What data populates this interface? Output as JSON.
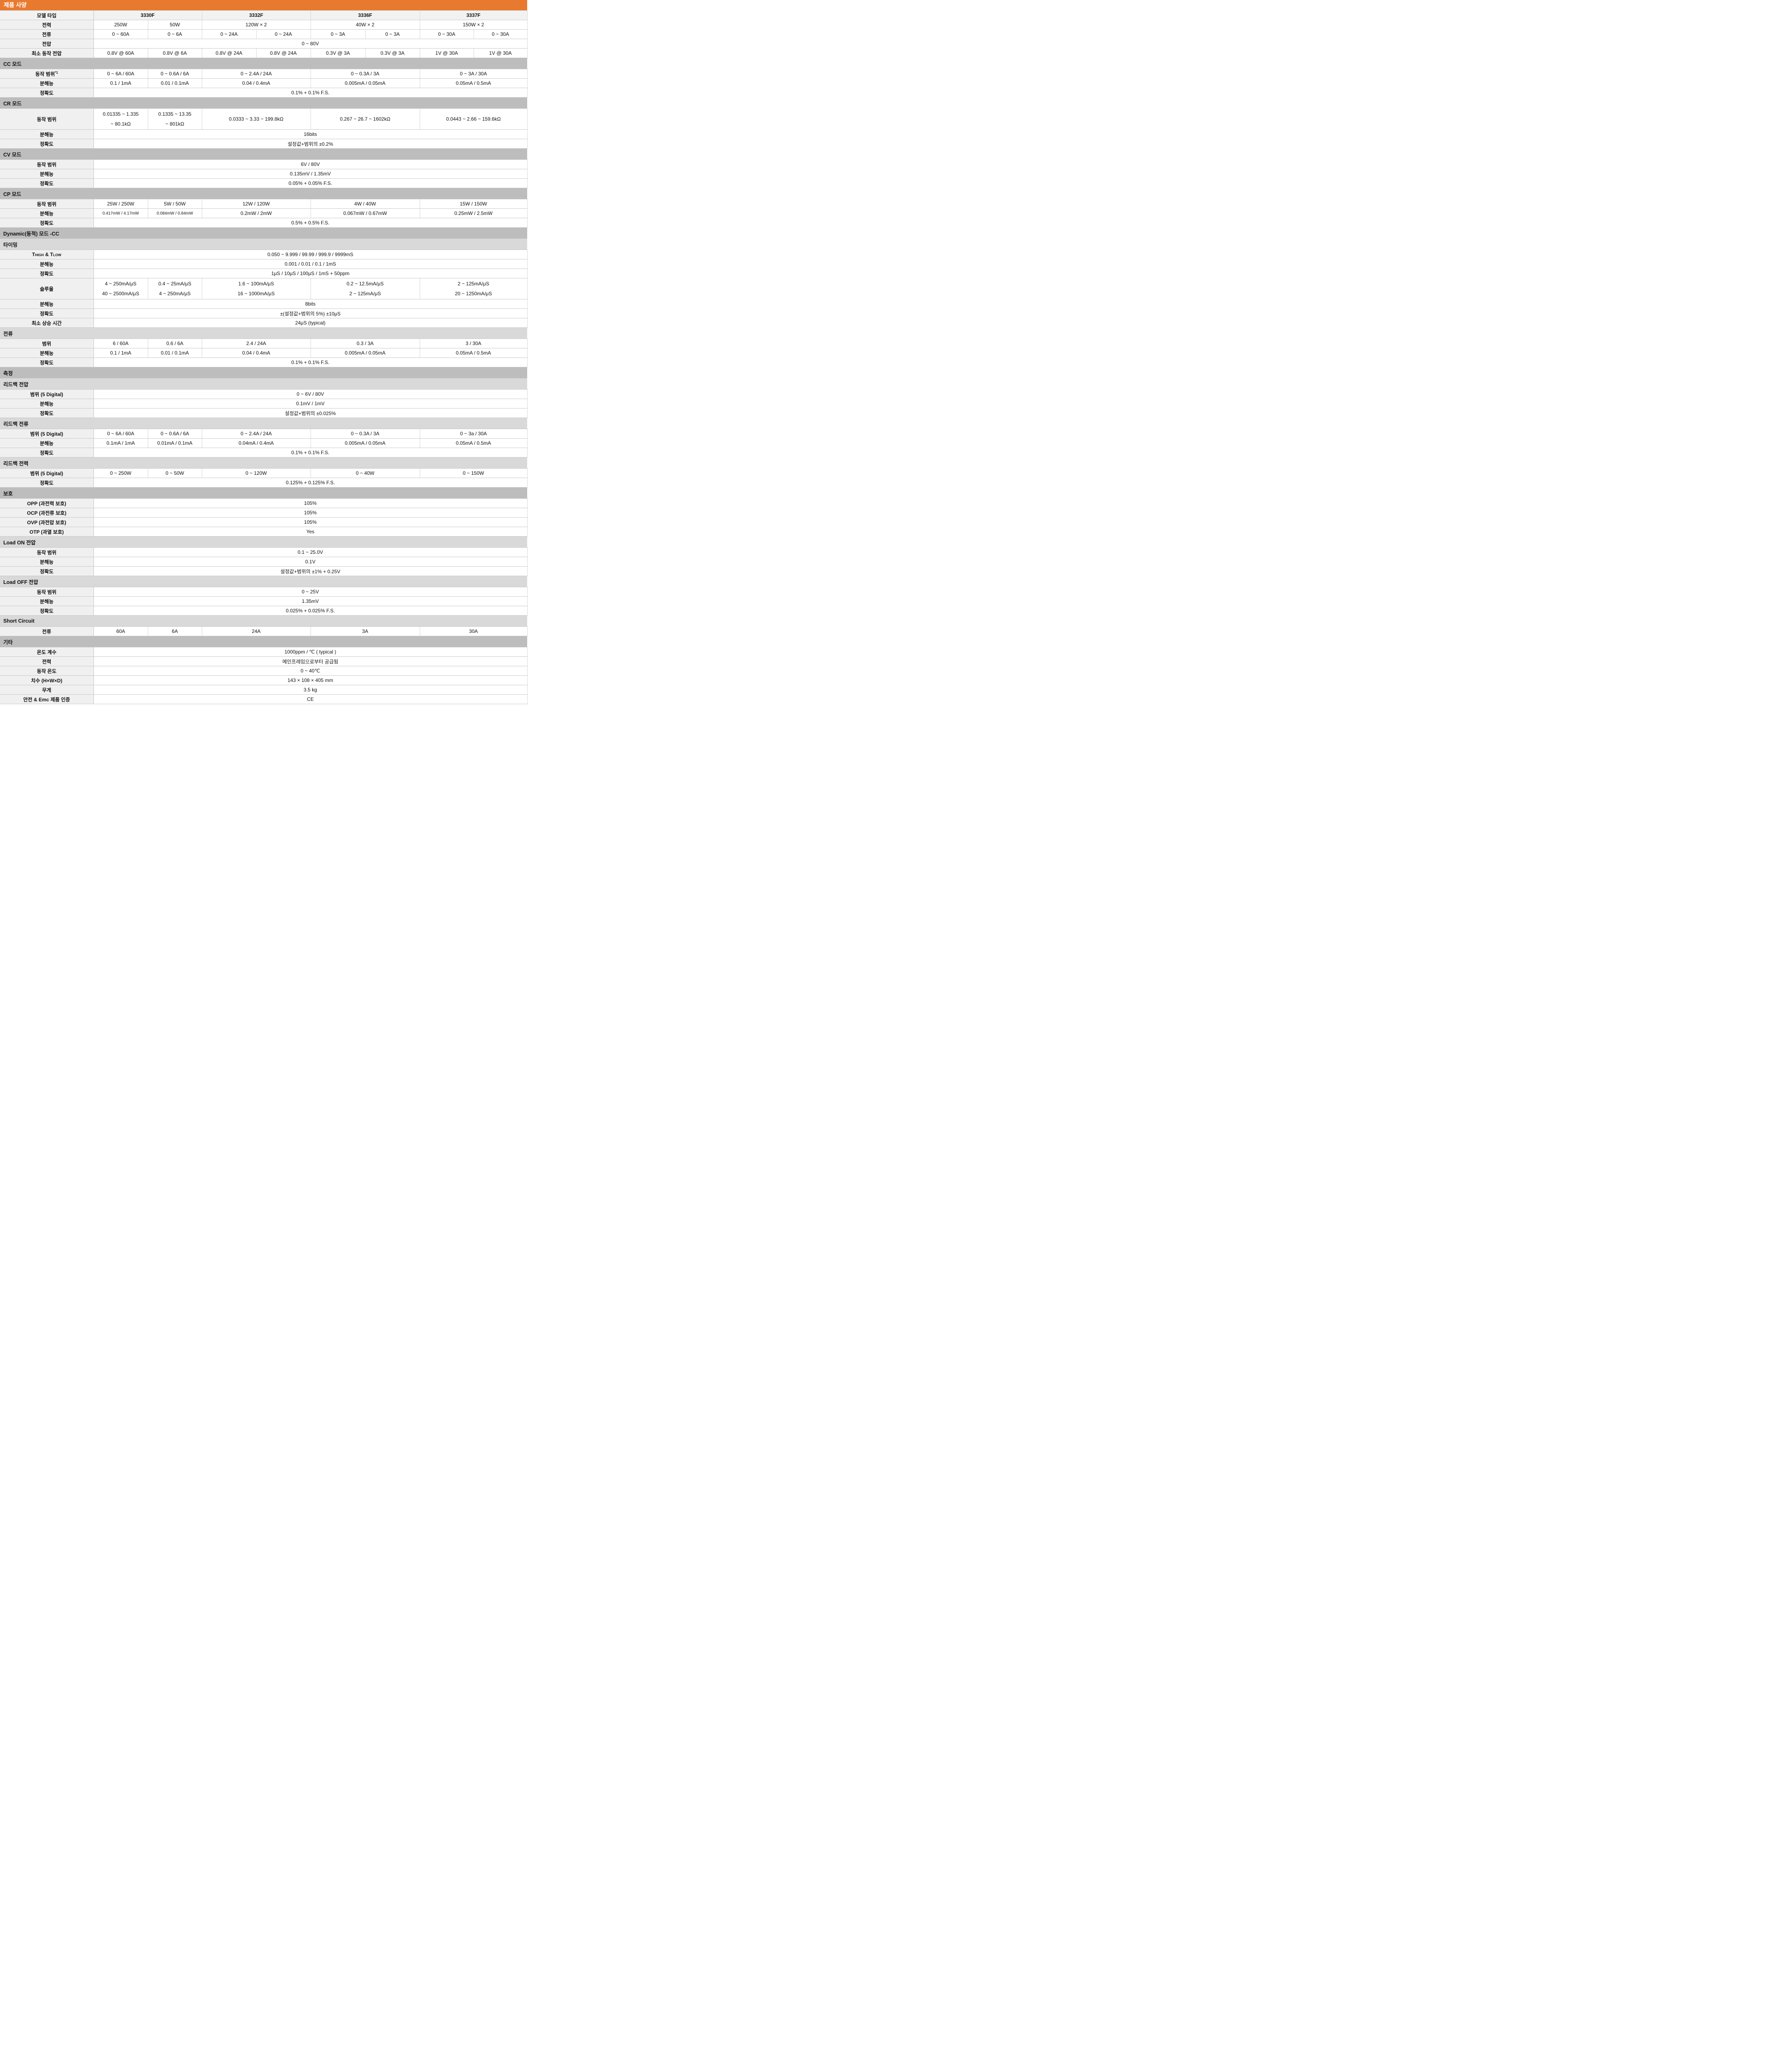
{
  "title": "제품 사양",
  "colors": {
    "accent": "#e87a30",
    "section_level1_bg": "#bdbdbd",
    "section_level2_bg": "#d9d9d9",
    "label_bg": "#f0f0f0",
    "header_bg": "#f2f2f2",
    "border": "#c9c9c9",
    "title_text": "#ffffff"
  },
  "table": {
    "models": [
      "3330F",
      "3332F",
      "3336F",
      "3337F"
    ],
    "rows": [
      {
        "kind": "header",
        "label": "모델 타입",
        "cells": [
          {
            "t": "3330F",
            "s": 2
          },
          {
            "t": "3332F",
            "s": 2
          },
          {
            "t": "3336F",
            "s": 2
          },
          {
            "t": "3337F",
            "s": 2
          }
        ]
      },
      {
        "kind": "row",
        "label": "전력",
        "cells": [
          {
            "t": "250W"
          },
          {
            "t": "50W"
          },
          {
            "t": "120W × 2",
            "s": 2
          },
          {
            "t": "40W × 2",
            "s": 2
          },
          {
            "t": "150W × 2",
            "s": 2
          }
        ]
      },
      {
        "kind": "row",
        "label": "전류",
        "cells": [
          {
            "t": "0 ~ 60A"
          },
          {
            "t": "0 ~ 6A"
          },
          {
            "t": "0 ~ 24A"
          },
          {
            "t": "0 ~ 24A"
          },
          {
            "t": "0 ~ 3A"
          },
          {
            "t": "0 ~ 3A"
          },
          {
            "t": "0 ~ 30A"
          },
          {
            "t": "0 ~ 30A"
          }
        ]
      },
      {
        "kind": "row",
        "label": "전압",
        "cells": [
          {
            "t": "0 ~ 80V",
            "s": 8
          }
        ]
      },
      {
        "kind": "row",
        "label": "최소 동작 전압",
        "cells": [
          {
            "t": "0.8V @ 60A"
          },
          {
            "t": "0.8V @ 6A"
          },
          {
            "t": "0.8V @ 24A"
          },
          {
            "t": "0.8V @ 24A"
          },
          {
            "t": "0.3V @ 3A"
          },
          {
            "t": "0.3V @ 3A"
          },
          {
            "t": "1V @ 30A"
          },
          {
            "t": "1V @ 30A"
          }
        ]
      },
      {
        "kind": "section",
        "level": 1,
        "label": "CC 모드"
      },
      {
        "kind": "row",
        "label": "동작 범위",
        "sup": "*1",
        "cells": [
          {
            "t": "0 ~ 6A / 60A"
          },
          {
            "t": "0 ~ 0.6A / 6A"
          },
          {
            "t": "0 ~ 2.4A / 24A",
            "s": 2
          },
          {
            "t": "0 ~ 0.3A / 3A",
            "s": 2
          },
          {
            "t": "0 ~ 3A / 30A",
            "s": 2
          }
        ]
      },
      {
        "kind": "row",
        "label": "분해능",
        "cells": [
          {
            "t": "0.1 / 1mA"
          },
          {
            "t": "0.01 / 0.1mA"
          },
          {
            "t": "0.04 / 0.4mA",
            "s": 2
          },
          {
            "t": "0.005mA / 0.05mA",
            "s": 2
          },
          {
            "t": "0.05mA / 0.5mA",
            "s": 2
          }
        ]
      },
      {
        "kind": "row",
        "label": "정확도",
        "cells": [
          {
            "t": "0.1% + 0.1% F.S.",
            "s": 8
          }
        ]
      },
      {
        "kind": "section",
        "level": 1,
        "label": "CR 모드"
      },
      {
        "kind": "row",
        "label": "동작 범위",
        "cells": [
          {
            "lines": [
              "0.01335 ~ 1.335",
              "~ 80.1kΩ"
            ]
          },
          {
            "lines": [
              "0.1335 ~ 13.35",
              "~ 801kΩ"
            ]
          },
          {
            "t": "0.0333 ~ 3.33 ~ 199.8kΩ",
            "s": 2
          },
          {
            "t": "0.267 ~ 26.7 ~ 1602kΩ",
            "s": 2
          },
          {
            "t": "0.0443 ~ 2.66 ~ 159.6kΩ",
            "s": 2
          }
        ]
      },
      {
        "kind": "row",
        "label": "분해능",
        "cells": [
          {
            "t": "16bits",
            "s": 8
          }
        ]
      },
      {
        "kind": "row",
        "label": "정확도",
        "cells": [
          {
            "t": "설정값+범위의 ±0.2%",
            "s": 8
          }
        ]
      },
      {
        "kind": "section",
        "level": 1,
        "label": "CV 모드"
      },
      {
        "kind": "row",
        "label": "동작 범위",
        "cells": [
          {
            "t": "6V / 80V",
            "s": 8
          }
        ]
      },
      {
        "kind": "row",
        "label": "분해능",
        "cells": [
          {
            "t": "0.135mV / 1.35mV",
            "s": 8
          }
        ]
      },
      {
        "kind": "row",
        "label": "정확도",
        "cells": [
          {
            "t": "0.05% + 0.05% F.S.",
            "s": 8
          }
        ]
      },
      {
        "kind": "section",
        "level": 1,
        "label": "CP 모드"
      },
      {
        "kind": "row",
        "label": "동작 범위",
        "cells": [
          {
            "t": "25W / 250W"
          },
          {
            "t": "5W / 50W"
          },
          {
            "t": "12W / 120W",
            "s": 2
          },
          {
            "t": "4W / 40W",
            "s": 2
          },
          {
            "t": "15W / 150W",
            "s": 2
          }
        ]
      },
      {
        "kind": "row",
        "label": "분해능",
        "cells": [
          {
            "t": "0.417mW / 4.17mW",
            "small": true
          },
          {
            "t": "0.084mW / 0.84mW",
            "small": true
          },
          {
            "t": "0.2mW / 2mW",
            "s": 2
          },
          {
            "t": "0.067mW / 0.67mW",
            "s": 2
          },
          {
            "t": "0.25mW / 2.5mW",
            "s": 2
          }
        ]
      },
      {
        "kind": "row",
        "label": "정확도",
        "cells": [
          {
            "t": "0.5% + 0.5% F.S.",
            "s": 8
          }
        ]
      },
      {
        "kind": "section",
        "level": 1,
        "label": "Dynamic(동적) 모드  -CC"
      },
      {
        "kind": "section",
        "level": 2,
        "label": "타이밍"
      },
      {
        "kind": "row",
        "labelParts": [
          {
            "t": "T"
          },
          {
            "t": "HIGH",
            "small": true
          },
          {
            "t": " & T"
          },
          {
            "t": "LOW",
            "small": true
          }
        ],
        "cells": [
          {
            "t": "0.050 ~ 9.999 / 99.99 / 999.9 / 9999mS",
            "s": 8
          }
        ]
      },
      {
        "kind": "row",
        "label": "분해능",
        "cells": [
          {
            "t": "0.001 / 0.01 / 0.1 / 1mS",
            "s": 8
          }
        ]
      },
      {
        "kind": "row",
        "label": "정확도",
        "cells": [
          {
            "t": "1μS / 10μS / 100μS / 1mS + 50ppm",
            "s": 8
          }
        ]
      },
      {
        "kind": "row",
        "label": "슬루율",
        "cells": [
          {
            "lines": [
              "4 ~ 250mA/μS",
              "40 ~ 2500mA/μS"
            ]
          },
          {
            "lines": [
              "0.4 ~ 25mA/μS",
              "4 ~ 250mA/μS"
            ]
          },
          {
            "lines": [
              "1.6 ~ 100mA/μS",
              "16 ~ 1000mA/μS"
            ],
            "s": 2
          },
          {
            "lines": [
              "0.2 ~ 12.5mA/μS",
              "2 ~ 125mA/μS"
            ],
            "s": 2
          },
          {
            "lines": [
              "2 ~ 125mA/μS",
              "20 ~ 1250mA/μS"
            ],
            "s": 2
          }
        ]
      },
      {
        "kind": "row",
        "label": "분해능",
        "cells": [
          {
            "t": "8bits",
            "s": 8
          }
        ]
      },
      {
        "kind": "row",
        "label": "정확도",
        "cells": [
          {
            "t": "±(설정값+범위의 5%) ±10μS",
            "s": 8
          }
        ]
      },
      {
        "kind": "row",
        "label": "최소 상승 시간",
        "cells": [
          {
            "t": "24μS (typical)",
            "s": 8
          }
        ]
      },
      {
        "kind": "section",
        "level": 2,
        "label": "전류"
      },
      {
        "kind": "row",
        "label": "범위",
        "cells": [
          {
            "t": "6 / 60A"
          },
          {
            "t": "0.6 / 6A"
          },
          {
            "t": "2.4 / 24A",
            "s": 2
          },
          {
            "t": "0.3 / 3A",
            "s": 2
          },
          {
            "t": "3 / 30A",
            "s": 2
          }
        ]
      },
      {
        "kind": "row",
        "label": "분해능",
        "cells": [
          {
            "t": "0.1 / 1mA"
          },
          {
            "t": "0.01 / 0.1mA"
          },
          {
            "t": "0.04 / 0.4mA",
            "s": 2
          },
          {
            "t": "0.005mA / 0.05mA",
            "s": 2
          },
          {
            "t": "0.05mA / 0.5mA",
            "s": 2
          }
        ]
      },
      {
        "kind": "row",
        "label": "정확도",
        "cells": [
          {
            "t": "0.1% + 0.1% F.S.",
            "s": 8
          }
        ]
      },
      {
        "kind": "section",
        "level": 1,
        "label": "측정"
      },
      {
        "kind": "section",
        "level": 2,
        "label": "리드백 전압"
      },
      {
        "kind": "row",
        "label": "범위 (5 Digital)",
        "cells": [
          {
            "t": "0 ~ 6V / 80V",
            "s": 8
          }
        ]
      },
      {
        "kind": "row",
        "label": "분해능",
        "cells": [
          {
            "t": "0.1mV / 1mV",
            "s": 8
          }
        ]
      },
      {
        "kind": "row",
        "label": "정확도",
        "cells": [
          {
            "t": "설정값+범위의 ±0.025%",
            "s": 8
          }
        ]
      },
      {
        "kind": "section",
        "level": 2,
        "label": "리드백 전류"
      },
      {
        "kind": "row",
        "label": "범위 (5 Digital)",
        "cells": [
          {
            "t": "0 ~ 6A / 60A"
          },
          {
            "t": "0 ~ 0.6A / 6A"
          },
          {
            "t": "0 ~ 2.4A / 24A",
            "s": 2
          },
          {
            "t": "0 ~ 0.3A / 3A",
            "s": 2
          },
          {
            "t": "0 ~ 3a / 30A",
            "s": 2
          }
        ]
      },
      {
        "kind": "row",
        "label": "분해능",
        "cells": [
          {
            "t": "0.1mA / 1mA"
          },
          {
            "t": "0.01mA / 0.1mA"
          },
          {
            "t": "0.04mA / 0.4mA",
            "s": 2
          },
          {
            "t": "0.005mA / 0.05mA",
            "s": 2
          },
          {
            "t": "0.05mA / 0.5mA",
            "s": 2
          }
        ]
      },
      {
        "kind": "row",
        "label": "정확도",
        "cells": [
          {
            "t": "0.1% + 0.1% F.S.",
            "s": 8
          }
        ]
      },
      {
        "kind": "section",
        "level": 2,
        "label": "리드백 전력"
      },
      {
        "kind": "row",
        "label": "범위 (5 Digital)",
        "cells": [
          {
            "t": "0 ~ 250W"
          },
          {
            "t": "0 ~ 50W"
          },
          {
            "t": "0 ~ 120W",
            "s": 2
          },
          {
            "t": "0 ~ 40W",
            "s": 2
          },
          {
            "t": "0 ~ 150W",
            "s": 2
          }
        ]
      },
      {
        "kind": "row",
        "label": "정확도",
        "cells": [
          {
            "t": "0.125% + 0.125% F.S.",
            "s": 8
          }
        ]
      },
      {
        "kind": "section",
        "level": 1,
        "label": "보호"
      },
      {
        "kind": "row",
        "label": "OPP (과전력 보호)",
        "cells": [
          {
            "t": "105%",
            "s": 8
          }
        ]
      },
      {
        "kind": "row",
        "label": "OCP (과전류 보호)",
        "cells": [
          {
            "t": "105%",
            "s": 8
          }
        ]
      },
      {
        "kind": "row",
        "label": "OVP (과전압 보호)",
        "cells": [
          {
            "t": "105%",
            "s": 8
          }
        ]
      },
      {
        "kind": "row",
        "label": "OTP (과열 보호)",
        "cells": [
          {
            "t": "Yes",
            "s": 8
          }
        ]
      },
      {
        "kind": "section",
        "level": 2,
        "label": "Load ON 전압"
      },
      {
        "kind": "row",
        "label": "동작 범위",
        "cells": [
          {
            "t": "0.1 ~ 25.0V",
            "s": 8
          }
        ]
      },
      {
        "kind": "row",
        "label": "분해능",
        "cells": [
          {
            "t": "0.1V",
            "s": 8
          }
        ]
      },
      {
        "kind": "row",
        "label": "정확도",
        "cells": [
          {
            "t": "설정값+범위의 ±1% + 0.25V",
            "s": 8
          }
        ]
      },
      {
        "kind": "section",
        "level": 2,
        "label": "Load OFF 전압"
      },
      {
        "kind": "row",
        "label": "동작 범위",
        "cells": [
          {
            "t": "0 ~ 25V",
            "s": 8
          }
        ]
      },
      {
        "kind": "row",
        "label": "분해능",
        "cells": [
          {
            "t": "1.35mV",
            "s": 8
          }
        ]
      },
      {
        "kind": "row",
        "label": "정확도",
        "cells": [
          {
            "t": "0.025% + 0.025% F.S.",
            "s": 8
          }
        ]
      },
      {
        "kind": "section",
        "level": 2,
        "label": "Short Circuit"
      },
      {
        "kind": "row",
        "label": "전류",
        "cells": [
          {
            "t": "60A"
          },
          {
            "t": "6A"
          },
          {
            "t": "24A",
            "s": 2
          },
          {
            "t": "3A",
            "s": 2
          },
          {
            "t": "30A",
            "s": 2
          }
        ]
      },
      {
        "kind": "section",
        "level": 1,
        "label": "기타"
      },
      {
        "kind": "row",
        "label": "온도 계수",
        "cells": [
          {
            "t": "1000ppm / ℃ ( typical )",
            "s": 8
          }
        ]
      },
      {
        "kind": "row",
        "label": "전력",
        "cells": [
          {
            "t": "메인프레임으로부터 공급됨",
            "s": 8
          }
        ]
      },
      {
        "kind": "row",
        "label": "동작 온도",
        "cells": [
          {
            "t": "0 ~ 40℃",
            "s": 8
          }
        ]
      },
      {
        "kind": "row",
        "label": "치수 (H×W×D)",
        "cells": [
          {
            "t": "143 × 108 × 405 mm",
            "s": 8
          }
        ]
      },
      {
        "kind": "row",
        "label": "무게",
        "cells": [
          {
            "t": "3.5 kg",
            "s": 8
          }
        ]
      },
      {
        "kind": "row",
        "label": "안전 & Emc 제품 인증",
        "cells": [
          {
            "t": "CE",
            "s": 8
          }
        ]
      }
    ]
  }
}
